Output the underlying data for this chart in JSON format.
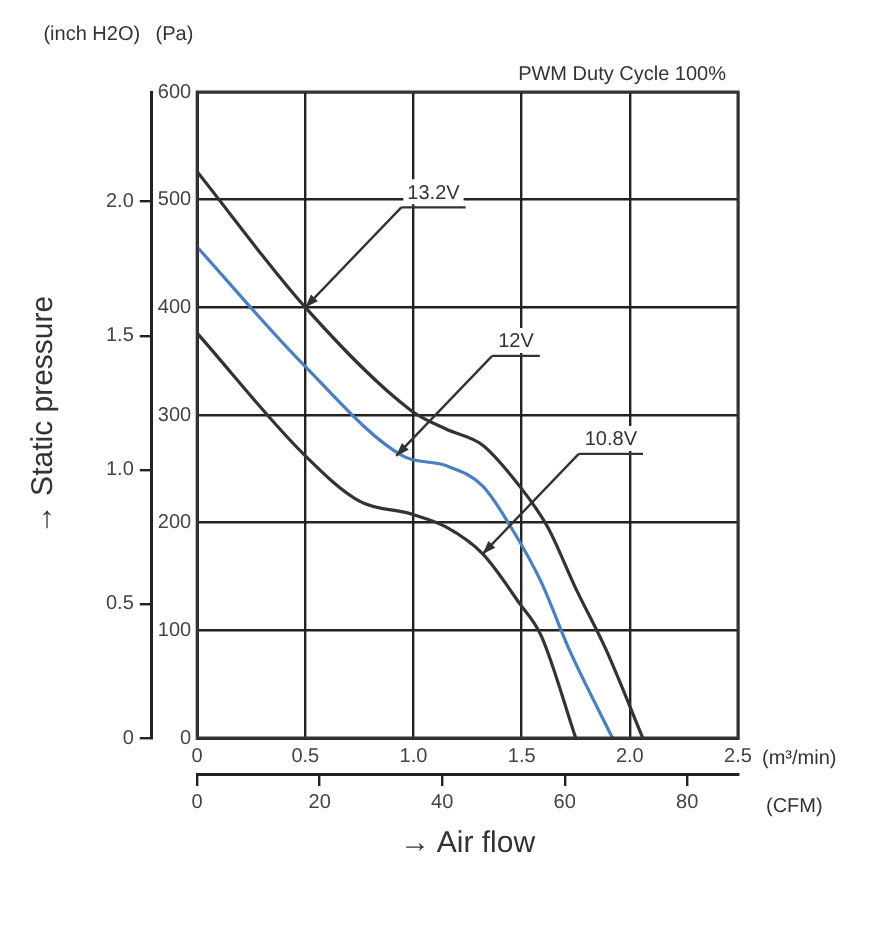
{
  "chart_data": {
    "type": "line",
    "title": "PWM Duty Cycle 100%",
    "xlabel": "(m³/min)",
    "x2label": "(CFM)",
    "ylabel": "(Pa)",
    "y2label": "(inch H2O)",
    "xlim": [
      0,
      2.5
    ],
    "xticks": [
      0,
      0.5,
      {
        "value": 1,
        "label": "1.0"
      },
      1.5,
      {
        "value": 2,
        "label": "2.0"
      },
      2.5
    ],
    "x2lim": [
      0,
      88.29
    ],
    "x2ticks": [
      0,
      20,
      40,
      60,
      80
    ],
    "ylim": [
      0,
      600
    ],
    "yticks": [
      0,
      100,
      200,
      300,
      400,
      500,
      600
    ],
    "y2lim": [
      0,
      2.409
    ],
    "y2ticks": [
      0,
      0.5,
      {
        "value": 1,
        "label": "1.0"
      },
      1.5,
      {
        "value": 2,
        "label": "2.0"
      }
    ],
    "grid": true,
    "legend": false,
    "series": [
      {
        "color": "#333333",
        "x": [
          0,
          0.5,
          0.99,
          1.15,
          1.32,
          1.49,
          1.62,
          1.75,
          1.89,
          2.06
        ],
        "values": [
          526,
          400,
          304,
          287,
          272,
          234,
          196,
          139,
          82,
          0
        ]
      },
      {
        "color": "#4a7fc0",
        "x": [
          0,
          0.49,
          0.95,
          1.15,
          1.32,
          1.45,
          1.59,
          1.72,
          1.92
        ],
        "values": [
          456,
          347,
          262,
          253,
          234,
          196,
          145,
          82,
          0
        ]
      },
      {
        "color": "#333333",
        "x": [
          0,
          0.5,
          0.75,
          0.99,
          1.15,
          1.32,
          1.49,
          1.59,
          1.75
        ],
        "values": [
          376,
          262,
          220,
          208,
          196,
          171,
          125,
          95,
          0
        ]
      }
    ],
    "annotations": [
      "→ Static pressure",
      "→ Air flow",
      {
        "text": "13.2V",
        "x": 0.5,
        "y": 400
      },
      {
        "text": "12V",
        "x": 0.92,
        "y": 262
      },
      {
        "text": "10.8V",
        "x": 1.32,
        "y": 171
      }
    ]
  }
}
